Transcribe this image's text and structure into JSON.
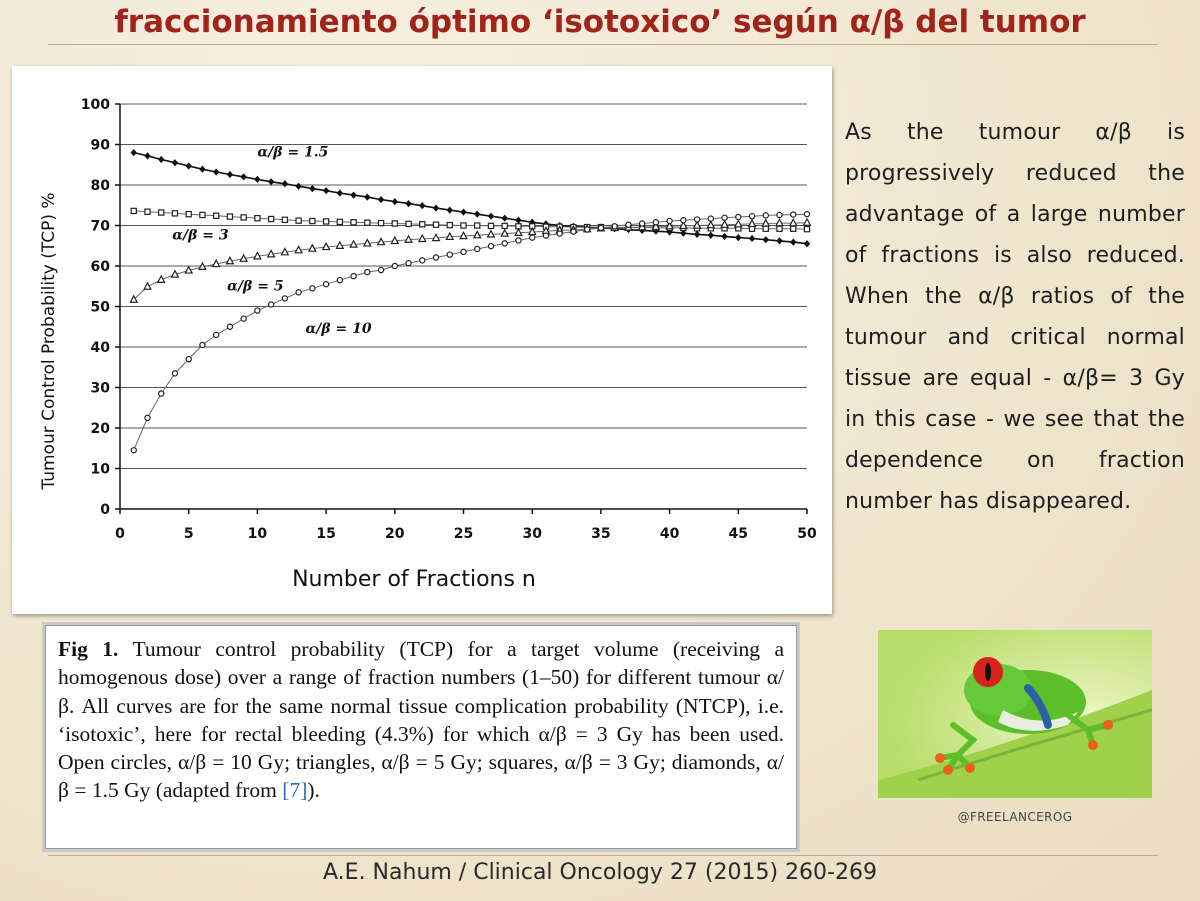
{
  "slide": {
    "title": "fraccionamiento óptimo ‘isotoxico’ según α/β del tumor",
    "side_text": "As the tumour α/β is progressively reduced the advantage of a large number of fractions is also reduced. When the α/β ratios of the tumour and critical normal tissue are equal - α/β= 3 Gy in this case - we see that the dependence on fraction number has disappeared.",
    "credit": "@FREELANCEROG",
    "source": "A.E. Nahum / Clinical Oncology 27 (2015) 260-269"
  },
  "caption": {
    "fig_label": "Fig 1.",
    "text": "Tumour control probability (TCP) for a target volume (receiving a homogenous dose) over a range of fraction numbers (1–50) for different tumour α/β. All curves are for the same normal tissue complication probability (NTCP), i.e. ‘isotoxic’, here for rectal bleeding (4.3%) for which α/β = 3 Gy has been used. Open circles, α/β = 10 Gy; triangles, α/β = 5 Gy; squares, α/β = 3 Gy; diamonds, α/β = 1.5 Gy (adapted from ",
    "ref": "[7]",
    "end": ")."
  },
  "chart_data": {
    "type": "line",
    "xlabel": "Number of Fractions  n",
    "ylabel": "Tumour Control Probability (TCP)  %",
    "xlim": [
      0,
      50
    ],
    "ylim": [
      0,
      100
    ],
    "xticks": [
      "0",
      "5",
      "10",
      "15",
      "20",
      "25",
      "30",
      "35",
      "40",
      "45",
      "50"
    ],
    "yticks": [
      "0",
      "10",
      "20",
      "30",
      "40",
      "50",
      "60",
      "70",
      "80",
      "90",
      "100"
    ],
    "grid": "horizontal",
    "series": [
      {
        "name": "α/β = 1.5",
        "marker": "diamond",
        "label_at": [
          10,
          87
        ],
        "x": [
          1,
          2,
          3,
          4,
          5,
          6,
          7,
          8,
          9,
          10,
          11,
          12,
          13,
          14,
          15,
          16,
          17,
          18,
          19,
          20,
          21,
          22,
          23,
          24,
          25,
          26,
          27,
          28,
          29,
          30,
          31,
          32,
          33,
          34,
          35,
          36,
          37,
          38,
          39,
          40,
          41,
          42,
          43,
          44,
          45,
          46,
          47,
          48,
          49,
          50
        ],
        "y": [
          88.0,
          87.2,
          86.3,
          85.5,
          84.7,
          83.9,
          83.2,
          82.6,
          82.0,
          81.4,
          80.8,
          80.3,
          79.7,
          79.1,
          78.6,
          78.0,
          77.5,
          77.0,
          76.4,
          75.9,
          75.4,
          74.9,
          74.3,
          73.8,
          73.3,
          72.8,
          72.3,
          71.8,
          71.3,
          70.8,
          70.4,
          70.0,
          69.8,
          69.6,
          69.4,
          69.2,
          69.0,
          68.8,
          68.6,
          68.4,
          68.1,
          67.8,
          67.6,
          67.3,
          67.0,
          66.8,
          66.5,
          66.2,
          65.9,
          65.5
        ]
      },
      {
        "name": "α/β = 3",
        "marker": "square",
        "label_at": [
          3.8,
          66.5
        ],
        "x": [
          1,
          2,
          3,
          4,
          5,
          6,
          7,
          8,
          9,
          10,
          11,
          12,
          13,
          14,
          15,
          16,
          17,
          18,
          19,
          20,
          21,
          22,
          23,
          24,
          25,
          26,
          27,
          28,
          29,
          30,
          31,
          32,
          33,
          34,
          35,
          36,
          37,
          38,
          39,
          40,
          41,
          42,
          43,
          44,
          45,
          46,
          47,
          48,
          49,
          50
        ],
        "y": [
          73.6,
          73.4,
          73.2,
          73.0,
          72.8,
          72.6,
          72.4,
          72.2,
          72.0,
          71.8,
          71.6,
          71.4,
          71.2,
          71.1,
          71.0,
          70.9,
          70.8,
          70.7,
          70.6,
          70.5,
          70.4,
          70.3,
          70.2,
          70.1,
          70.0,
          70.0,
          69.9,
          69.9,
          69.8,
          69.8,
          69.7,
          69.7,
          69.6,
          69.6,
          69.6,
          69.5,
          69.5,
          69.5,
          69.4,
          69.4,
          69.4,
          69.3,
          69.3,
          69.3,
          69.3,
          69.2,
          69.2,
          69.2,
          69.2,
          69.1
        ]
      },
      {
        "name": "α/β = 5",
        "marker": "triangle",
        "label_at": [
          7.8,
          54
        ],
        "x": [
          1,
          2,
          3,
          4,
          5,
          6,
          7,
          8,
          9,
          10,
          11,
          12,
          13,
          14,
          15,
          16,
          17,
          18,
          19,
          20,
          21,
          22,
          23,
          24,
          25,
          26,
          27,
          28,
          29,
          30,
          31,
          32,
          33,
          34,
          35,
          36,
          37,
          38,
          39,
          40,
          41,
          42,
          43,
          44,
          45,
          46,
          47,
          48,
          49,
          50
        ],
        "y": [
          51.7,
          54.9,
          56.6,
          57.9,
          58.9,
          59.8,
          60.5,
          61.2,
          61.8,
          62.4,
          62.9,
          63.4,
          63.9,
          64.3,
          64.7,
          65.0,
          65.3,
          65.6,
          65.9,
          66.2,
          66.5,
          66.7,
          66.9,
          67.2,
          67.4,
          67.6,
          67.8,
          68.0,
          68.2,
          68.4,
          68.6,
          68.8,
          68.9,
          69.1,
          69.3,
          69.4,
          69.5,
          69.6,
          69.7,
          69.8,
          69.9,
          70.0,
          70.1,
          70.2,
          70.3,
          70.4,
          70.5,
          70.6,
          70.6,
          70.7
        ]
      },
      {
        "name": "α/β = 10",
        "marker": "circle",
        "label_at": [
          13.5,
          43.5
        ],
        "x": [
          1,
          2,
          3,
          4,
          5,
          6,
          7,
          8,
          9,
          10,
          11,
          12,
          13,
          14,
          15,
          16,
          17,
          18,
          19,
          20,
          21,
          22,
          23,
          24,
          25,
          26,
          27,
          28,
          29,
          30,
          31,
          32,
          33,
          34,
          35,
          36,
          37,
          38,
          39,
          40,
          41,
          42,
          43,
          44,
          45,
          46,
          47,
          48,
          49,
          50
        ],
        "y": [
          14.5,
          22.5,
          28.5,
          33.5,
          37.0,
          40.5,
          43.0,
          45.0,
          47.0,
          49.0,
          50.5,
          52.0,
          53.5,
          54.5,
          55.5,
          56.5,
          57.5,
          58.5,
          59.0,
          60.0,
          60.7,
          61.4,
          62.1,
          62.8,
          63.5,
          64.2,
          64.9,
          65.6,
          66.3,
          67.0,
          67.5,
          68.0,
          68.5,
          69.0,
          69.4,
          69.8,
          70.2,
          70.5,
          70.8,
          71.1,
          71.3,
          71.5,
          71.7,
          71.9,
          72.1,
          72.3,
          72.5,
          72.6,
          72.7,
          72.8
        ]
      }
    ]
  },
  "colors": {
    "title": "#a0231c",
    "frog_body": "#5cbf2a",
    "frog_eye": "#d8221a",
    "frog_feet": "#e8621a"
  }
}
